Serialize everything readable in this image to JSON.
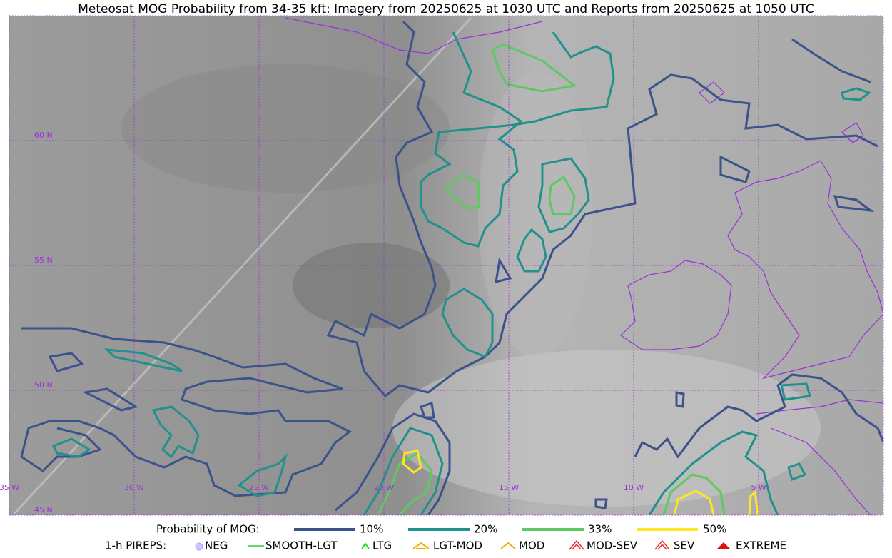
{
  "title": "Meteosat MOG Probability from 34-35 kft: Imagery from 20250625 at 1030 UTC and Reports from 20250625 at 1050 UTC",
  "map": {
    "lat_labels": [
      "60 N",
      "55 N",
      "50 N",
      "45 N"
    ],
    "lon_labels": [
      "35 W",
      "30 W",
      "25 W",
      "20 W",
      "15 W",
      "10 W",
      "5 W"
    ]
  },
  "legend": {
    "probability": {
      "label": "Probability of MOG:",
      "items": [
        "10%",
        "20%",
        "33%",
        "50%"
      ]
    },
    "pireps": {
      "label": "1-h PIREPS:",
      "items": [
        "NEG",
        "SMOOTH-LGT",
        "LTG",
        "LGT-MOD",
        "MOD",
        "MOD-SEV",
        "SEV",
        "EXTREME"
      ]
    }
  }
}
